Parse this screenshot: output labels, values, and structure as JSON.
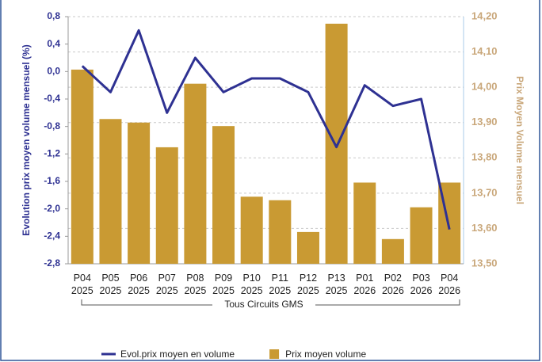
{
  "chart_data": {
    "type": "bar_line",
    "categories": [
      [
        "P04",
        "2025"
      ],
      [
        "P05",
        "2025"
      ],
      [
        "P06",
        "2025"
      ],
      [
        "P07",
        "2025"
      ],
      [
        "P08",
        "2025"
      ],
      [
        "P09",
        "2025"
      ],
      [
        "P10",
        "2025"
      ],
      [
        "P11",
        "2025"
      ],
      [
        "P12",
        "2025"
      ],
      [
        "P13",
        "2025"
      ],
      [
        "P01",
        "2026"
      ],
      [
        "P02",
        "2026"
      ],
      [
        "P03",
        "2026"
      ],
      [
        "P04",
        "2026"
      ]
    ],
    "group_label": "Tous Circuits GMS",
    "ylabel": "Evolution prix moyen volume mensuel (%)",
    "y2label": "Prix Moyen Volume mensuel",
    "ylim": [
      -2.8,
      0.8
    ],
    "yticks": [
      {
        "value": 0.8,
        "label": "0,8"
      },
      {
        "value": 0.4,
        "label": "0,4"
      },
      {
        "value": 0,
        "label": "0,0"
      },
      {
        "value": -0.4,
        "label": "-0,4"
      },
      {
        "value": -0.8,
        "label": "-0,8"
      },
      {
        "value": -1.2,
        "label": "-1,2"
      },
      {
        "value": -1.6,
        "label": "-1,6"
      },
      {
        "value": -2.0,
        "label": "-2,0"
      },
      {
        "value": -2.4,
        "label": "-2,4"
      },
      {
        "value": -2.8,
        "label": "-2,8"
      }
    ],
    "y2lim": [
      13.5,
      14.2
    ],
    "y2ticks": [
      {
        "value": 14.2,
        "label": "14,20"
      },
      {
        "value": 14.1,
        "label": "14,10"
      },
      {
        "value": 14.0,
        "label": "14,00"
      },
      {
        "value": 13.9,
        "label": "13,90"
      },
      {
        "value": 13.8,
        "label": "13,80"
      },
      {
        "value": 13.7,
        "label": "13,70"
      },
      {
        "value": 13.6,
        "label": "13,60"
      },
      {
        "value": 13.5,
        "label": "13,50"
      }
    ],
    "grid": "y2",
    "series": [
      {
        "name": "Evol.prix moyen en volume",
        "type": "line",
        "color": "#2e3192",
        "axis": "y",
        "values": [
          0.08,
          -0.3,
          0.6,
          -0.6,
          0.2,
          -0.3,
          -0.1,
          -0.1,
          -0.3,
          -1.1,
          -0.2,
          -0.5,
          -0.4,
          -2.3
        ]
      },
      {
        "name": "Prix moyen volume",
        "type": "bar",
        "color": "#c99a33",
        "axis": "y2",
        "values": [
          14.05,
          13.91,
          13.9,
          13.83,
          14.01,
          13.89,
          13.69,
          13.68,
          13.59,
          14.18,
          13.73,
          13.57,
          13.66,
          13.73
        ]
      }
    ]
  }
}
